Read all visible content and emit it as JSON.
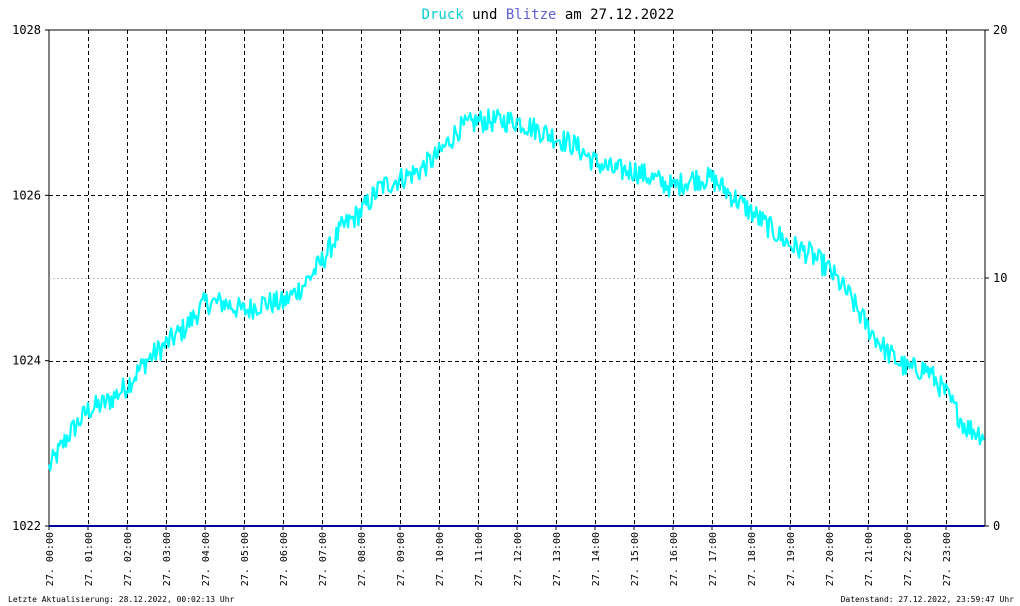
{
  "title": {
    "part1": "Druck",
    "part2": " und ",
    "part3": "Blitze",
    "part4": " am 27.12.2022"
  },
  "footer": {
    "left": "Letzte Aktualisierung: 28.12.2022, 00:02:13 Uhr",
    "right": "Datenstand: 27.12.2022, 23:59:47 Uhr"
  },
  "colors": {
    "pressure": "#00ffff",
    "lightning": "#0000a0",
    "title_pressure": "#00d0d0",
    "title_lightning": "#6060d0",
    "grid": "#000000",
    "background": "#ffffff"
  },
  "chart_data": {
    "type": "line",
    "title": "Druck und Blitze am 27.12.2022",
    "grid": true,
    "x_range": [
      "27. 00:00",
      "27. 24:00"
    ],
    "x_ticks": [
      "27. 00:00",
      "27. 01:00",
      "27. 02:00",
      "27. 03:00",
      "27. 04:00",
      "27. 05:00",
      "27. 06:00",
      "27. 07:00",
      "27. 08:00",
      "27. 09:00",
      "27. 10:00",
      "27. 11:00",
      "27. 12:00",
      "27. 13:00",
      "27. 14:00",
      "27. 15:00",
      "27. 16:00",
      "27. 17:00",
      "27. 18:00",
      "27. 19:00",
      "27. 20:00",
      "27. 21:00",
      "27. 22:00",
      "27. 23:00"
    ],
    "y_left": {
      "ylim": [
        1022,
        1028
      ],
      "ticks": [
        "1022",
        "1024",
        "1026",
        "1028"
      ]
    },
    "y_right": {
      "ylim": [
        0,
        20
      ],
      "ticks": [
        "0",
        "10",
        "20"
      ]
    },
    "series": [
      {
        "name": "Druck",
        "axis": "left",
        "x": [
          "00:00",
          "00:30",
          "01:00",
          "01:30",
          "02:00",
          "02:30",
          "03:00",
          "03:30",
          "04:00",
          "04:30",
          "05:00",
          "05:30",
          "06:00",
          "06:30",
          "07:00",
          "07:30",
          "08:00",
          "08:30",
          "09:00",
          "09:30",
          "10:00",
          "10:30",
          "11:00",
          "11:30",
          "12:00",
          "12:30",
          "13:00",
          "13:30",
          "14:00",
          "14:30",
          "15:00",
          "15:30",
          "16:00",
          "16:30",
          "17:00",
          "17:30",
          "18:00",
          "18:30",
          "19:00",
          "19:30",
          "20:00",
          "20:30",
          "21:00",
          "21:30",
          "22:00",
          "22:30",
          "23:00",
          "23:30",
          "23:59"
        ],
        "values": [
          1022.7,
          1023.1,
          1023.4,
          1023.5,
          1023.7,
          1024.0,
          1024.2,
          1024.4,
          1024.7,
          1024.7,
          1024.6,
          1024.7,
          1024.7,
          1024.9,
          1025.2,
          1025.6,
          1025.8,
          1026.1,
          1026.2,
          1026.3,
          1026.5,
          1026.8,
          1026.9,
          1026.9,
          1026.9,
          1026.8,
          1026.7,
          1026.6,
          1026.4,
          1026.3,
          1026.3,
          1026.2,
          1026.1,
          1026.2,
          1026.2,
          1026.0,
          1025.8,
          1025.6,
          1025.4,
          1025.3,
          1025.1,
          1024.8,
          1024.4,
          1024.1,
          1023.9,
          1023.9,
          1023.6,
          1023.2,
          1023.1
        ]
      },
      {
        "name": "Blitze",
        "axis": "right",
        "x": [
          "00:00",
          "23:59"
        ],
        "values": [
          0,
          0
        ]
      }
    ]
  }
}
